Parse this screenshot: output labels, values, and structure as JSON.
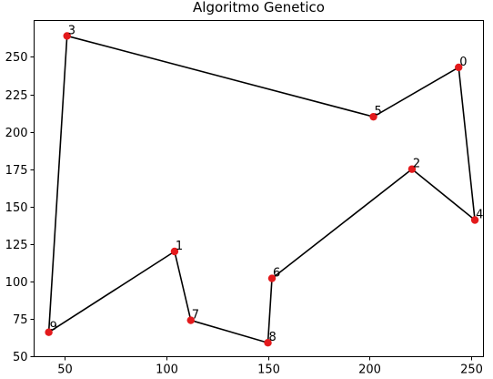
{
  "chart_data": {
    "type": "line",
    "title": "Algoritmo Genetico",
    "xlabel": "",
    "ylabel": "",
    "xlim": [
      35,
      256
    ],
    "ylim": [
      50,
      274
    ],
    "xticks": [
      50,
      100,
      150,
      200,
      250
    ],
    "yticks": [
      50,
      75,
      100,
      125,
      150,
      175,
      200,
      225,
      250
    ],
    "grid": false,
    "legend": "none",
    "colors": {
      "line": "#000000",
      "marker": "#e31a1c"
    },
    "points": [
      {
        "label": "0",
        "x": 244,
        "y": 243
      },
      {
        "label": "1",
        "x": 104,
        "y": 120
      },
      {
        "label": "2",
        "x": 221,
        "y": 175
      },
      {
        "label": "3",
        "x": 51,
        "y": 264
      },
      {
        "label": "4",
        "x": 252,
        "y": 141
      },
      {
        "label": "5",
        "x": 202,
        "y": 210
      },
      {
        "label": "6",
        "x": 152,
        "y": 102
      },
      {
        "label": "7",
        "x": 112,
        "y": 74
      },
      {
        "label": "8",
        "x": 150,
        "y": 59
      },
      {
        "label": "9",
        "x": 42,
        "y": 66
      }
    ],
    "route": [
      "0",
      "4",
      "2",
      "6",
      "8",
      "7",
      "1",
      "9",
      "3",
      "5",
      "0"
    ]
  }
}
